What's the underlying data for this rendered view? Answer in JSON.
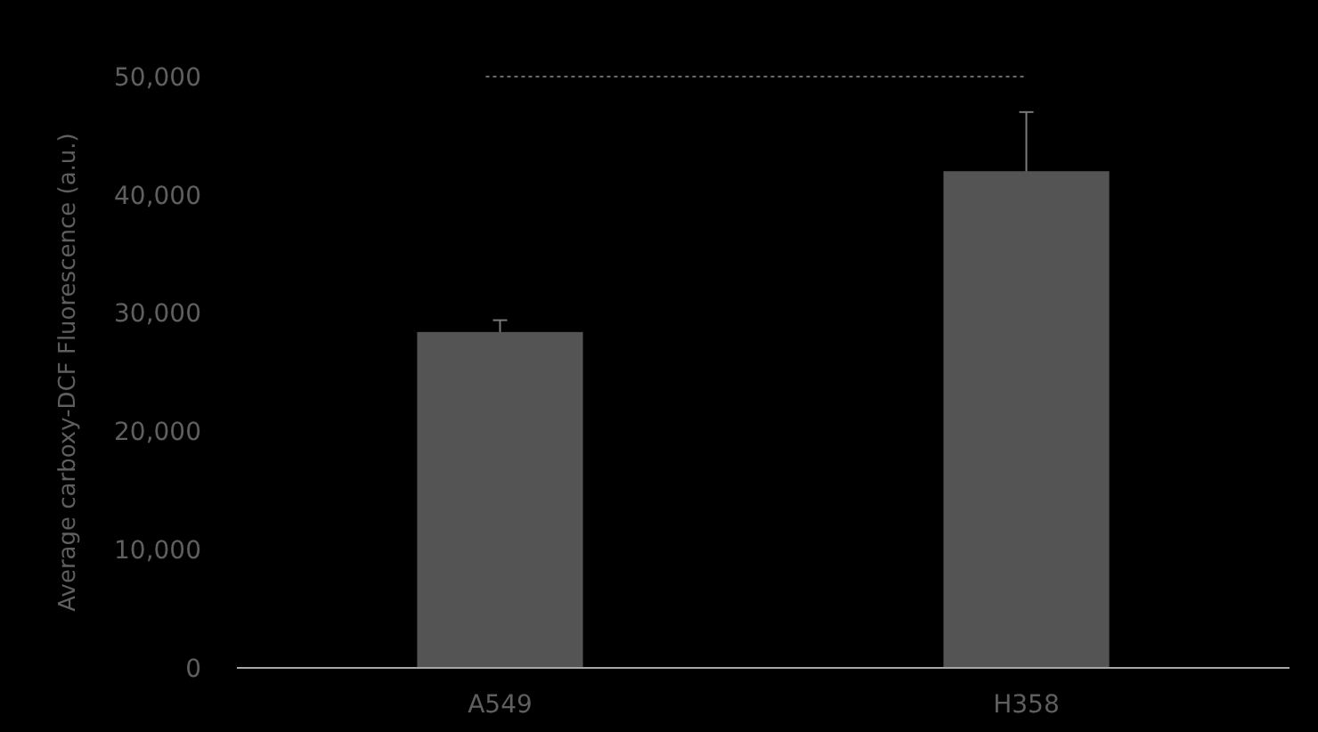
{
  "chart_data": {
    "type": "bar",
    "ylabel": "Average carboxy-DCF Fluorescence (a.u.)",
    "categories": [
      "A549",
      "H358"
    ],
    "values": [
      28400,
      42000
    ],
    "errors": [
      1000,
      5000
    ],
    "color": "#545454",
    "ylim": [
      0,
      50000
    ],
    "yticks": [
      {
        "value": 0,
        "label": "0"
      },
      {
        "value": 10000,
        "label": "10,000"
      },
      {
        "value": 20000,
        "label": "20,000"
      },
      {
        "value": 30000,
        "label": "30,000"
      },
      {
        "value": 40000,
        "label": "40,000"
      },
      {
        "value": 50000,
        "label": "50,000"
      }
    ],
    "grid": false
  }
}
